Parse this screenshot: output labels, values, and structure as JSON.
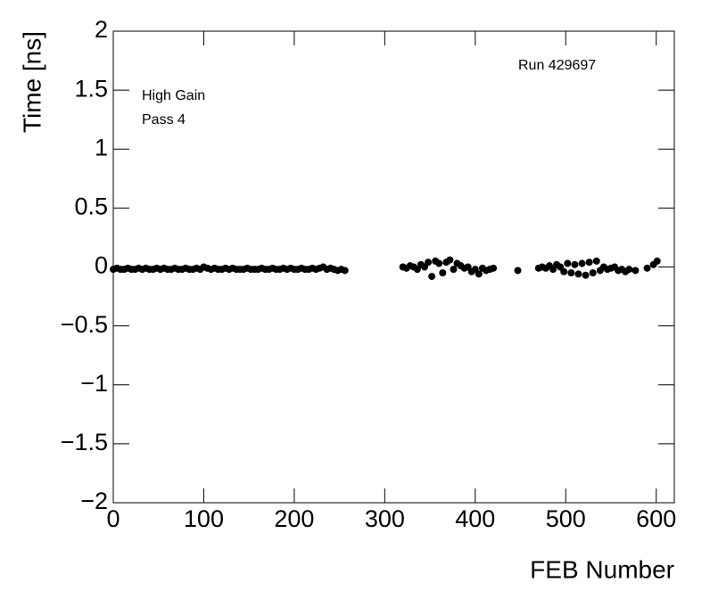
{
  "chart_data": {
    "type": "scatter",
    "annotations": [
      "Run 429697",
      "High Gain",
      "Pass 4"
    ],
    "xlabel": "FEB Number",
    "ylabel": "Time [ns]",
    "xlim": [
      0,
      620
    ],
    "ylim": [
      -2,
      2
    ],
    "xticks": [
      0,
      100,
      200,
      300,
      400,
      500,
      600
    ],
    "yticks": [
      {
        "value": -2,
        "label": "−2"
      },
      {
        "value": -1.5,
        "label": "−1.5"
      },
      {
        "value": -1,
        "label": "−1"
      },
      {
        "value": -0.5,
        "label": "−0.5"
      },
      0,
      0.5,
      1,
      1.5,
      2
    ],
    "series": [
      {
        "color": "#000000",
        "x": [
          0,
          4,
          8,
          12,
          16,
          20,
          24,
          28,
          32,
          36,
          40,
          44,
          48,
          52,
          56,
          60,
          64,
          68,
          72,
          76,
          80,
          84,
          88,
          92,
          96,
          100,
          104,
          108,
          112,
          116,
          120,
          124,
          128,
          132,
          136,
          140,
          144,
          148,
          152,
          156,
          160,
          164,
          168,
          172,
          176,
          180,
          184,
          188,
          192,
          196,
          200,
          204,
          208,
          212,
          216,
          220,
          224,
          228,
          232,
          236,
          240,
          244,
          248,
          252,
          256,
          320,
          324,
          328,
          332,
          336,
          340,
          344,
          348,
          352,
          356,
          360,
          364,
          368,
          372,
          376,
          380,
          384,
          388,
          392,
          396,
          400,
          404,
          408,
          412,
          416,
          420,
          447,
          470,
          474,
          478,
          482,
          486,
          490,
          494,
          498,
          502,
          506,
          510,
          514,
          518,
          522,
          526,
          530,
          534,
          538,
          542,
          546,
          550,
          554,
          558,
          562,
          566,
          570,
          577,
          590,
          597,
          601
        ],
        "values": [
          -0.02,
          -0.01,
          -0.02,
          -0.02,
          -0.01,
          -0.02,
          -0.02,
          -0.01,
          -0.02,
          -0.01,
          -0.02,
          -0.02,
          -0.01,
          -0.02,
          -0.01,
          -0.02,
          -0.02,
          -0.01,
          -0.02,
          -0.02,
          -0.01,
          -0.02,
          -0.02,
          -0.01,
          -0.02,
          0,
          -0.01,
          -0.02,
          -0.01,
          -0.02,
          -0.02,
          -0.01,
          -0.02,
          -0.01,
          -0.02,
          -0.02,
          -0.02,
          -0.01,
          -0.02,
          -0.02,
          -0.02,
          -0.01,
          -0.02,
          -0.02,
          -0.01,
          -0.02,
          -0.02,
          -0.01,
          -0.02,
          -0.01,
          -0.02,
          -0.02,
          -0.01,
          -0.02,
          -0.02,
          -0.01,
          -0.02,
          -0.01,
          0,
          -0.02,
          -0.01,
          -0.02,
          -0.03,
          -0.02,
          -0.03,
          0,
          -0.01,
          0.01,
          0,
          -0.02,
          0.02,
          0,
          0.04,
          -0.08,
          0.05,
          0.03,
          -0.05,
          0.04,
          0.06,
          -0.02,
          0.03,
          0.01,
          -0.01,
          0,
          -0.04,
          -0.02,
          -0.06,
          -0.01,
          -0.03,
          -0.02,
          -0.01,
          -0.03,
          -0.01,
          0,
          -0.01,
          0.01,
          -0.02,
          0.02,
          0,
          -0.04,
          0.03,
          -0.05,
          0.02,
          -0.06,
          0.03,
          -0.07,
          0.04,
          -0.05,
          0.05,
          -0.03,
          0,
          -0.02,
          -0.01,
          0,
          -0.03,
          -0.02,
          -0.04,
          -0.02,
          -0.03,
          -0.01,
          0.02,
          0.05
        ]
      }
    ]
  }
}
